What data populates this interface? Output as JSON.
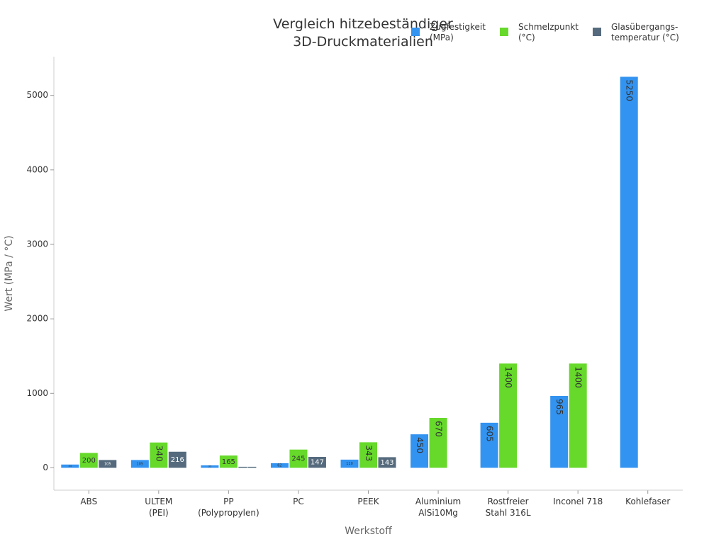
{
  "chart_data": {
    "type": "bar",
    "title": [
      "Vergleich hitzebeständiger",
      "3D-Druckmaterialien"
    ],
    "xlabel": "Werkstoff",
    "ylabel": "Wert (MPa / °C)",
    "ylim": [
      -300,
      5520
    ],
    "yticks": [
      0,
      1000,
      2000,
      3000,
      4000,
      5000
    ],
    "categories": [
      [
        "ABS"
      ],
      [
        "ULTEM",
        "(PEI)"
      ],
      [
        "PP",
        "(Polypropylen)"
      ],
      [
        "PC"
      ],
      [
        "PEEK"
      ],
      [
        "Aluminium",
        "AlSi10Mg"
      ],
      [
        "Rostfreier",
        "Stahl 316L"
      ],
      [
        "Inconel 718"
      ],
      [
        "Kohlefaser"
      ]
    ],
    "series": [
      {
        "name": [
          "Zugfestigkeit",
          "(MPa)"
        ],
        "color": "#3393f0",
        "values": [
          44,
          105,
          33,
          62,
          110,
          450,
          605,
          965,
          5250
        ]
      },
      {
        "name": [
          "Schmelzpunkt",
          "(°C)"
        ],
        "color": "#66d92a",
        "values": [
          200,
          340,
          165,
          245,
          343,
          670,
          1400,
          1400,
          null
        ]
      },
      {
        "name": [
          "Glasübergangs-",
          "temperatur (°C)"
        ],
        "color": "#556b7d",
        "values": [
          105,
          216,
          5,
          147,
          143,
          null,
          null,
          null,
          null
        ]
      }
    ],
    "legend_position": "top-right",
    "grid": false
  }
}
